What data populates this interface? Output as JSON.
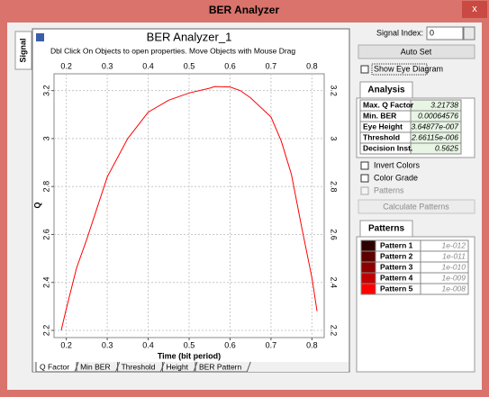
{
  "window": {
    "title": "BER Analyzer",
    "close": "x"
  },
  "side_tab": "Signal",
  "chart_data": {
    "type": "line",
    "title": "BER Analyzer_1",
    "subtitle": "Dbl Click On Objects to open properties.  Move Objects with Mouse Drag",
    "xlabel": "Time (bit period)",
    "ylabel": "Q",
    "x": [
      0.1875,
      0.2,
      0.225,
      0.25,
      0.275,
      0.3,
      0.35,
      0.4,
      0.45,
      0.5,
      0.55,
      0.5625,
      0.6,
      0.625,
      0.65,
      0.7,
      0.725,
      0.75,
      0.775,
      0.8,
      0.8125
    ],
    "values": [
      2.2,
      2.29,
      2.46,
      2.58,
      2.71,
      2.84,
      3.0,
      3.11,
      3.16,
      3.19,
      3.21,
      3.217,
      3.215,
      3.2,
      3.17,
      3.09,
      2.99,
      2.85,
      2.63,
      2.42,
      2.28
    ],
    "color": "#ff0000",
    "xlim": [
      0.17,
      0.83
    ],
    "xticks": [
      0.2,
      0.3,
      0.4,
      0.5,
      0.6,
      0.7,
      0.8
    ],
    "ylim": [
      2.17,
      3.27
    ],
    "yticks": [
      2.2,
      2.4,
      2.6,
      2.8,
      3,
      3.2
    ],
    "grid": true
  },
  "tabs": [
    "Q Factor",
    "Min BER",
    "Threshold",
    "Height",
    "BER Pattern"
  ],
  "controls": {
    "signal_index_label": "Signal Index:",
    "signal_index": "0",
    "auto_set": "Auto Set",
    "show_eye_diagram": "Show Eye Diagram",
    "invert_colors": "Invert Colors",
    "color_grade": "Color Grade",
    "patterns": "Patterns",
    "calculate_patterns": "Calculate Patterns"
  },
  "analysis": {
    "tab": "Analysis",
    "rows": [
      [
        "Max. Q Factor",
        "3.21738"
      ],
      [
        "Min. BER",
        "0.00064576"
      ],
      [
        "Eye Height",
        "3.64877e-007"
      ],
      [
        "Threshold",
        "2.66115e-006"
      ],
      [
        "Decision Inst.",
        "0.5625"
      ]
    ]
  },
  "patterns": {
    "tab": "Patterns",
    "rows": [
      {
        "name": "Pattern 1",
        "value": "1e-012",
        "color": "#2e0000"
      },
      {
        "name": "Pattern 2",
        "value": "1e-011",
        "color": "#5c0000"
      },
      {
        "name": "Pattern 3",
        "value": "1e-010",
        "color": "#8c0000"
      },
      {
        "name": "Pattern 4",
        "value": "1e-009",
        "color": "#c00000"
      },
      {
        "name": "Pattern 5",
        "value": "1e-008",
        "color": "#ff0000"
      }
    ]
  }
}
